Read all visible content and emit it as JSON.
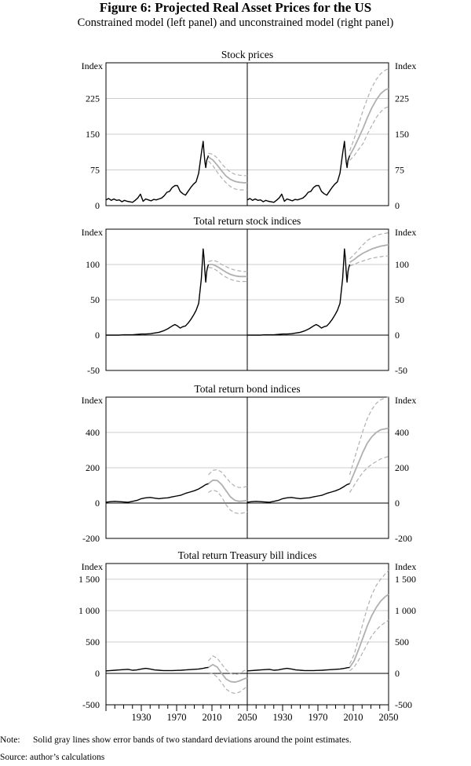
{
  "figure": {
    "title": "Figure 6: Projected Real Asset Prices for the US",
    "subtitle": "Constrained model (left panel) and unconstrained model (right panel)",
    "note_label": "Note:",
    "note_text": "Solid gray lines show error bands of two standard deviations around the point estimates.",
    "source": "Source: author’s calculations"
  },
  "colors": {
    "history": "#000000",
    "band": "#b0b0b0",
    "grid": "#bdbdbd",
    "axis": "#000000"
  },
  "chart_data": [
    {
      "type": "line",
      "title": "Stock prices",
      "ylabel": "Index",
      "ylim": [
        0,
        300
      ],
      "yticks": [
        0,
        75,
        150,
        225
      ],
      "ytick_labels": [
        "0",
        "75",
        "150",
        "225"
      ],
      "xlim": [
        1890,
        2050
      ],
      "x_history": [
        1890,
        1893,
        1896,
        1899,
        1902,
        1905,
        1908,
        1911,
        1914,
        1917,
        1920,
        1923,
        1926,
        1929,
        1932,
        1935,
        1938,
        1941,
        1944,
        1947,
        1950,
        1953,
        1956,
        1959,
        1962,
        1965,
        1968,
        1971,
        1974,
        1977,
        1980,
        1983,
        1986,
        1989,
        1992,
        1995,
        1998,
        2000,
        2001,
        2002,
        2003,
        2004,
        2005,
        2006
      ],
      "y_history": [
        12,
        15,
        11,
        14,
        11,
        12,
        8,
        11,
        9,
        8,
        7,
        11,
        16,
        24,
        9,
        14,
        12,
        10,
        13,
        12,
        14,
        16,
        21,
        28,
        30,
        38,
        42,
        42,
        30,
        25,
        22,
        30,
        38,
        45,
        50,
        68,
        110,
        135,
        112,
        92,
        80,
        95,
        100,
        105
      ],
      "left": {
        "x": [
          2006,
          2011,
          2016,
          2021,
          2026,
          2031,
          2036,
          2041,
          2046,
          2050
        ],
        "upper": [
          110,
          108,
          100,
          88,
          78,
          70,
          66,
          64,
          63,
          63
        ],
        "center": [
          102,
          96,
          85,
          73,
          62,
          55,
          51,
          49,
          48,
          48
        ],
        "lower": [
          94,
          84,
          70,
          58,
          48,
          40,
          35,
          33,
          33,
          33
        ]
      },
      "right": {
        "x": [
          2006,
          2011,
          2016,
          2021,
          2026,
          2031,
          2036,
          2041,
          2046,
          2050
        ],
        "upper": [
          115,
          140,
          170,
          200,
          225,
          248,
          265,
          277,
          284,
          288
        ],
        "center": [
          105,
          122,
          142,
          162,
          185,
          205,
          222,
          235,
          243,
          246
        ],
        "lower": [
          95,
          105,
          118,
          130,
          150,
          168,
          185,
          197,
          205,
          208
        ]
      }
    },
    {
      "type": "line",
      "title": "Total return stock indices",
      "ylabel": "Index",
      "ylim": [
        -50,
        150
      ],
      "yticks": [
        -50,
        0,
        50,
        100
      ],
      "ytick_labels": [
        "-50",
        "0",
        "50",
        "100"
      ],
      "xlim": [
        1890,
        2050
      ],
      "x_history": [
        1890,
        1895,
        1900,
        1905,
        1910,
        1915,
        1920,
        1925,
        1930,
        1935,
        1940,
        1945,
        1950,
        1955,
        1960,
        1965,
        1968,
        1971,
        1974,
        1977,
        1980,
        1983,
        1986,
        1989,
        1992,
        1995,
        1998,
        2000,
        2001,
        2002,
        2003,
        2004,
        2005,
        2006
      ],
      "y_history": [
        0,
        0,
        0,
        0,
        0.5,
        0.5,
        0.5,
        1,
        1.5,
        1.5,
        2,
        3,
        4,
        6,
        9,
        13,
        15,
        13,
        10,
        12,
        13,
        17,
        22,
        28,
        35,
        45,
        80,
        122,
        110,
        90,
        75,
        90,
        96,
        100
      ],
      "left": {
        "x": [
          2006,
          2011,
          2016,
          2021,
          2026,
          2031,
          2036,
          2041,
          2046,
          2050
        ],
        "upper": [
          104,
          106,
          104,
          100,
          97,
          94,
          92,
          91,
          90,
          90
        ],
        "center": [
          100,
          100,
          97,
          93,
          89,
          86,
          84,
          83,
          83,
          83
        ],
        "lower": [
          96,
          95,
          91,
          86,
          82,
          79,
          77,
          76,
          76,
          76
        ]
      },
      "right": {
        "x": [
          2006,
          2011,
          2016,
          2021,
          2026,
          2031,
          2036,
          2041,
          2046,
          2050
        ],
        "upper": [
          108,
          114,
          121,
          128,
          134,
          138,
          141,
          143,
          144,
          145
        ],
        "center": [
          103,
          107,
          112,
          116,
          119,
          122,
          124,
          126,
          127,
          128
        ],
        "lower": [
          98,
          100,
          103,
          105,
          107,
          109,
          110,
          111,
          112,
          112
        ]
      }
    },
    {
      "type": "line",
      "title": "Total return bond indices",
      "ylabel": "Index",
      "ylim": [
        -200,
        600
      ],
      "yticks": [
        -200,
        0,
        200,
        400
      ],
      "ytick_labels": [
        "-200",
        "0",
        "200",
        "400"
      ],
      "xlim": [
        1890,
        2050
      ],
      "x_history": [
        1890,
        1895,
        1900,
        1905,
        1910,
        1915,
        1920,
        1925,
        1930,
        1935,
        1940,
        1945,
        1950,
        1955,
        1960,
        1965,
        1970,
        1975,
        1980,
        1985,
        1990,
        1995,
        2000,
        2003,
        2006
      ],
      "y_history": [
        5,
        8,
        10,
        8,
        6,
        5,
        10,
        15,
        25,
        30,
        32,
        28,
        25,
        28,
        30,
        35,
        40,
        45,
        55,
        62,
        70,
        80,
        95,
        105,
        110
      ],
      "left": {
        "x": [
          2006,
          2011,
          2016,
          2021,
          2026,
          2031,
          2036,
          2041,
          2046,
          2050
        ],
        "upper": [
          160,
          185,
          190,
          175,
          145,
          115,
          95,
          88,
          90,
          95
        ],
        "center": [
          110,
          130,
          128,
          105,
          70,
          35,
          15,
          10,
          12,
          15
        ],
        "lower": [
          60,
          75,
          65,
          35,
          -10,
          -40,
          -55,
          -60,
          -55,
          -50
        ]
      },
      "right": {
        "x": [
          2006,
          2011,
          2016,
          2021,
          2026,
          2031,
          2036,
          2041,
          2046,
          2050
        ],
        "upper": [
          160,
          245,
          330,
          410,
          480,
          530,
          565,
          585,
          595,
          600
        ],
        "center": [
          110,
          170,
          230,
          290,
          340,
          375,
          400,
          415,
          420,
          425
        ],
        "lower": [
          60,
          100,
          140,
          175,
          200,
          220,
          235,
          250,
          258,
          265
        ]
      }
    },
    {
      "type": "line",
      "title": "Total return Treasury bill indices",
      "ylabel": "Index",
      "ylim": [
        -500,
        1750
      ],
      "yticks": [
        -500,
        0,
        500,
        1000,
        1500
      ],
      "ytick_labels": [
        "-500",
        "0",
        "500",
        "1 000",
        "1 500"
      ],
      "xlim": [
        1890,
        2050
      ],
      "xticks": [
        1930,
        1970,
        2010,
        2050
      ],
      "xtick_labels_left": [
        "1930",
        "1970",
        "2010",
        "2050"
      ],
      "xtick_labels_right": [
        "1930",
        "1970",
        "2010",
        "2050"
      ],
      "x_history": [
        1890,
        1895,
        1900,
        1905,
        1910,
        1915,
        1920,
        1925,
        1930,
        1935,
        1940,
        1945,
        1950,
        1955,
        1960,
        1965,
        1970,
        1975,
        1980,
        1985,
        1990,
        1995,
        2000,
        2003,
        2006
      ],
      "y_history": [
        40,
        45,
        50,
        55,
        60,
        65,
        50,
        55,
        70,
        80,
        70,
        55,
        50,
        45,
        45,
        45,
        48,
        50,
        55,
        60,
        65,
        70,
        80,
        90,
        95
      ],
      "left": {
        "x": [
          2006,
          2011,
          2016,
          2021,
          2026,
          2031,
          2036,
          2041,
          2046,
          2050
        ],
        "upper": [
          200,
          280,
          240,
          150,
          60,
          0,
          -20,
          -5,
          40,
          60
        ],
        "center": [
          95,
          140,
          100,
          0,
          -90,
          -130,
          -140,
          -120,
          -90,
          -70
        ],
        "lower": [
          -10,
          0,
          -60,
          -150,
          -250,
          -300,
          -320,
          -300,
          -250,
          -200
        ]
      },
      "right": {
        "x": [
          2006,
          2011,
          2016,
          2021,
          2026,
          2031,
          2036,
          2041,
          2046,
          2050
        ],
        "upper": [
          150,
          300,
          550,
          800,
          1050,
          1250,
          1400,
          1500,
          1580,
          1640
        ],
        "center": [
          95,
          200,
          380,
          570,
          760,
          920,
          1050,
          1150,
          1220,
          1260
        ],
        "lower": [
          40,
          100,
          210,
          340,
          470,
          600,
          690,
          760,
          810,
          850
        ]
      }
    }
  ]
}
